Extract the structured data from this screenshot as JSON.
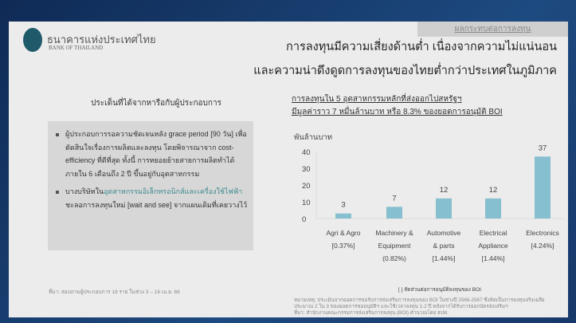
{
  "header": {
    "section_tag": "ผลกระทบต่อการลงทุน",
    "logo_th": "ธนาคารแห่งประเทศไทย",
    "logo_en": "BANK OF THAILAND",
    "headline_1": "การลงทุนมีความเสี่ยงด้านต่ำ เนื่องจากความไม่แน่นอน",
    "headline_2": "และความน่าดึงดูดการลงทุนของไทยต่ำกว่าประเทศในภูมิภาค"
  },
  "left": {
    "title": "ประเด็นที่ได้จากหารือกับผู้ประกอบการ",
    "bullets": [
      {
        "text": "ผู้ประกอบการรอความชัดเจนหลัง grace period [90 วัน] เพื่อตัดสินใจเรื่องการผลิตและลงทุน โดยพิจารณาจาก cost-efficiency ที่ดีที่สุด ทั้งนี้ การทยอยย้ายสายการผลิตทำได้ภายใน 6 เดือนถึง 2 ปี ขึ้นอยู่กับอุตสาหกรรม"
      },
      {
        "pre": "บางบริษัทใน",
        "highlight": "อุตสาหกรรมอิเล็กทรอนิกส์และเครื่องใช้ไฟฟ้า",
        "post": "ชะลอการลงทุนใหม่ [wait and see] จากแผนเดิมที่เคยวางไว้"
      }
    ],
    "source": "ที่มา: สอบถามผู้ประกอบการ 18 ราย ในช่วง 3 – 16 เม.ย. 68"
  },
  "chart_data": {
    "type": "bar",
    "title": "การลงทุนใน 5 อุตสาหกรรมหลักที่ส่งออกไปสหรัฐฯ",
    "subtitle": "มีมูลค่าราว 7 หมื่นล้านบาท หรือ 8.3% ของยอดการอนุมัติ BOI",
    "ylabel": "พันล้านบาท",
    "ylim": [
      0,
      40
    ],
    "yticks": [
      "0",
      "10",
      "20",
      "30",
      "40"
    ],
    "categories": [
      [
        "Agri & Agro",
        "[0.37%]"
      ],
      [
        "Machinery &",
        "Equipment",
        "(0.82%)"
      ],
      [
        "Automotive",
        "& parts",
        "[1.44%]"
      ],
      [
        "Electrical",
        "Appliance",
        "[1.44%]"
      ],
      [
        "Electronics",
        "[4.24%]"
      ]
    ],
    "values": [
      3,
      7,
      12,
      12,
      37
    ],
    "color": "#86bfcf",
    "footnote": "[ ] สัดส่วนต่อการอนุมัติลงทุนของ BOI"
  },
  "note": {
    "line1": "หมายเหตุ: ประเมินจากยอดการขอรับการส่งเสริมการลงทุนของ BOI ในช่วงปี 2566-2567 ซึ่งคิดเป็นการลงทุนจริงเฉลี่ย",
    "line2": "ประมาณ 2 ใน 3 ของยอดการขออนุมัติฯ และใช้เวลาลงทุน 1-2 ปี หลังจากได้รับการออกบัตรส่งเสริมฯ",
    "line3": "ที่มา: สำนักงานคณะกรรมการส่งเสริมการลงทุน (BOI) คำนวณโดย ธปท."
  }
}
